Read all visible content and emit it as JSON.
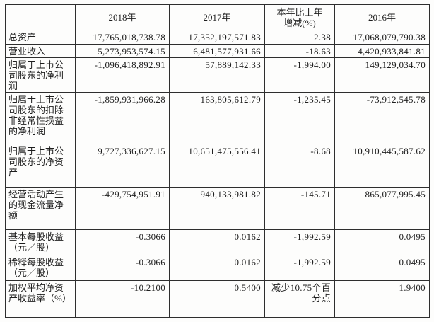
{
  "table": {
    "columns": [
      "",
      "2018年",
      "2017年",
      "本年比上年增减(%)",
      "2016年"
    ],
    "rows": [
      {
        "label": "总资产",
        "values": [
          "17,765,018,738.78",
          "17,352,197,571.83",
          "2.38",
          "17,068,079,790.38"
        ]
      },
      {
        "label": "营业收入",
        "values": [
          "5,273,953,574.15",
          "6,481,577,931.66",
          "-18.63",
          "4,420,933,841.81"
        ]
      },
      {
        "label": "归属于上市公司股东的净利润",
        "values": [
          "-1,096,418,892.91",
          "57,889,142.33",
          "-1,994.00",
          "149,129,034.70"
        ]
      },
      {
        "label": "归属于上市公司股东的扣除非经常性损益的净利润",
        "values": [
          "-1,859,931,966.28",
          "163,805,612.79",
          "-1,235.45",
          "-73,912,545.78"
        ]
      },
      {
        "label": "归属于上市公司股东的净资产",
        "values": [
          "9,727,336,627.15",
          "10,651,475,556.41",
          "-8.68",
          "10,910,445,587.62"
        ]
      },
      {
        "label": "经营活动产生的现金流量净额",
        "values": [
          "-429,754,951.91",
          "940,133,981.82",
          "-145.71",
          "865,077,995.45"
        ]
      },
      {
        "label": "基本每股收益（元／股）",
        "values": [
          "-0.3066",
          "0.0162",
          "-1,992.59",
          "0.0495"
        ]
      },
      {
        "label": "稀释每股收益（元／股）",
        "values": [
          "-0.3066",
          "0.0162",
          "-1,992.59",
          "0.0495"
        ]
      },
      {
        "label": "加权平均净资产收益率（%）",
        "values": [
          "-10.2100",
          "0.5400",
          "减少10.75个百分点",
          "1.9400"
        ]
      }
    ]
  }
}
